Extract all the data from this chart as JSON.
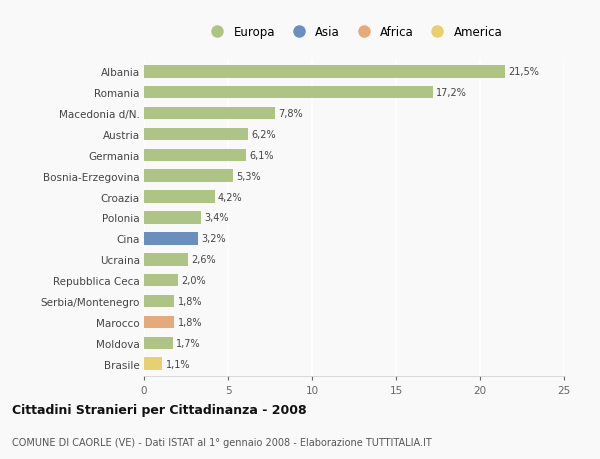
{
  "categories": [
    "Albania",
    "Romania",
    "Macedonia d/N.",
    "Austria",
    "Germania",
    "Bosnia-Erzegovina",
    "Croazia",
    "Polonia",
    "Cina",
    "Ucraina",
    "Repubblica Ceca",
    "Serbia/Montenegro",
    "Marocco",
    "Moldova",
    "Brasile"
  ],
  "values": [
    21.5,
    17.2,
    7.8,
    6.2,
    6.1,
    5.3,
    4.2,
    3.4,
    3.2,
    2.6,
    2.0,
    1.8,
    1.8,
    1.7,
    1.1
  ],
  "labels": [
    "21,5%",
    "17,2%",
    "7,8%",
    "6,2%",
    "6,1%",
    "5,3%",
    "4,2%",
    "3,4%",
    "3,2%",
    "2,6%",
    "2,0%",
    "1,8%",
    "1,8%",
    "1,7%",
    "1,1%"
  ],
  "bar_colors": [
    "#aec484",
    "#aec484",
    "#aec484",
    "#aec484",
    "#aec484",
    "#aec484",
    "#aec484",
    "#aec484",
    "#6a8fbf",
    "#aec484",
    "#aec484",
    "#aec484",
    "#e5a97a",
    "#aec484",
    "#e8d070"
  ],
  "legend_labels": [
    "Europa",
    "Asia",
    "Africa",
    "America"
  ],
  "legend_colors": [
    "#aec484",
    "#6a8fbf",
    "#e5a97a",
    "#e8d070"
  ],
  "title": "Cittadini Stranieri per Cittadinanza - 2008",
  "subtitle": "COMUNE DI CAORLE (VE) - Dati ISTAT al 1° gennaio 2008 - Elaborazione TUTTITALIA.IT",
  "xlim": [
    0,
    25
  ],
  "xticks": [
    0,
    5,
    10,
    15,
    20,
    25
  ],
  "background_color": "#f9f9f9",
  "grid_color": "#e8e8e8",
  "bar_height": 0.6
}
